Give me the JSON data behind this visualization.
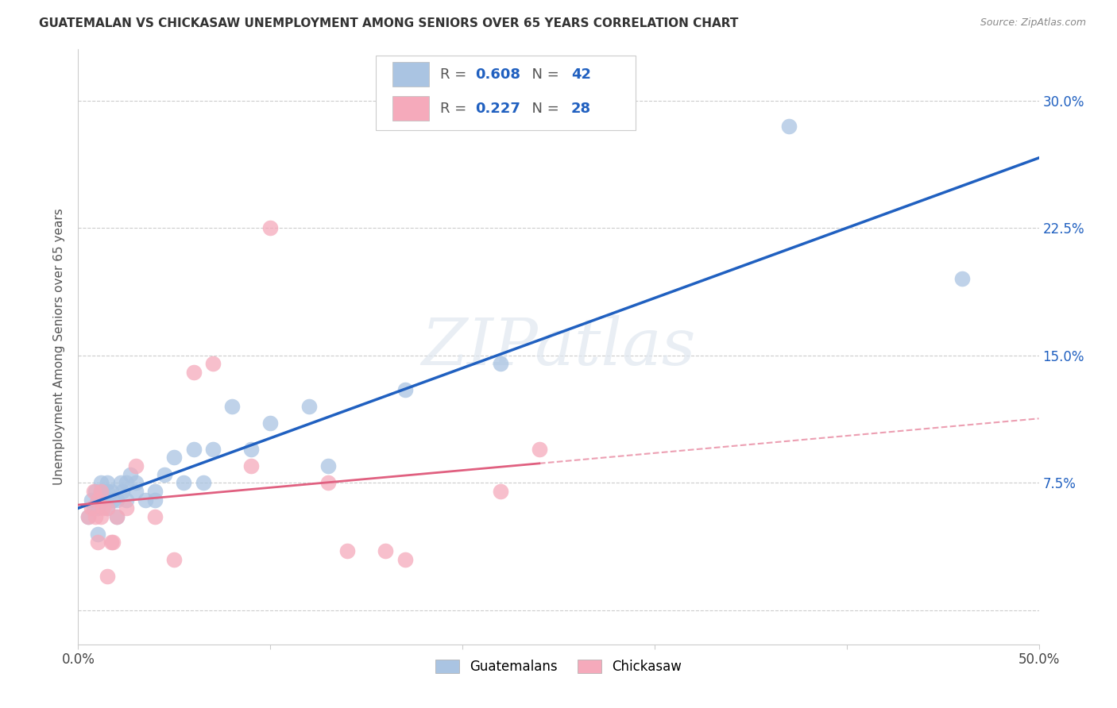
{
  "title": "GUATEMALAN VS CHICKASAW UNEMPLOYMENT AMONG SENIORS OVER 65 YEARS CORRELATION CHART",
  "source": "Source: ZipAtlas.com",
  "ylabel": "Unemployment Among Seniors over 65 years",
  "xlim": [
    0.0,
    0.5
  ],
  "ylim": [
    -0.02,
    0.33
  ],
  "x_ticks": [
    0.0,
    0.1,
    0.2,
    0.3,
    0.4,
    0.5
  ],
  "x_tick_labels": [
    "0.0%",
    "",
    "",
    "",
    "",
    "50.0%"
  ],
  "y_ticks": [
    0.0,
    0.075,
    0.15,
    0.225,
    0.3
  ],
  "y_tick_labels": [
    "",
    "7.5%",
    "15.0%",
    "22.5%",
    "30.0%"
  ],
  "background_color": "#ffffff",
  "grid_color": "#cccccc",
  "watermark_text": "ZIPatlas",
  "guatemalan_color": "#aac4e2",
  "chickasaw_color": "#f5aabb",
  "guatemalan_line_color": "#2060c0",
  "chickasaw_line_color": "#e06080",
  "guatemalan_x": [
    0.005,
    0.007,
    0.008,
    0.009,
    0.01,
    0.01,
    0.01,
    0.012,
    0.012,
    0.013,
    0.015,
    0.015,
    0.015,
    0.017,
    0.018,
    0.02,
    0.02,
    0.022,
    0.023,
    0.025,
    0.025,
    0.027,
    0.03,
    0.03,
    0.035,
    0.04,
    0.04,
    0.045,
    0.05,
    0.055,
    0.06,
    0.065,
    0.07,
    0.08,
    0.09,
    0.1,
    0.12,
    0.13,
    0.17,
    0.22,
    0.37,
    0.46
  ],
  "guatemalan_y": [
    0.055,
    0.065,
    0.06,
    0.07,
    0.06,
    0.065,
    0.045,
    0.07,
    0.075,
    0.065,
    0.06,
    0.07,
    0.075,
    0.07,
    0.065,
    0.055,
    0.065,
    0.075,
    0.07,
    0.065,
    0.075,
    0.08,
    0.07,
    0.075,
    0.065,
    0.07,
    0.065,
    0.08,
    0.09,
    0.075,
    0.095,
    0.075,
    0.095,
    0.12,
    0.095,
    0.11,
    0.12,
    0.085,
    0.13,
    0.145,
    0.285,
    0.195
  ],
  "chickasaw_x": [
    0.005,
    0.007,
    0.008,
    0.009,
    0.01,
    0.01,
    0.012,
    0.012,
    0.013,
    0.015,
    0.015,
    0.017,
    0.018,
    0.02,
    0.025,
    0.03,
    0.04,
    0.05,
    0.06,
    0.07,
    0.09,
    0.1,
    0.13,
    0.14,
    0.16,
    0.17,
    0.22,
    0.24
  ],
  "chickasaw_y": [
    0.055,
    0.06,
    0.07,
    0.055,
    0.065,
    0.04,
    0.055,
    0.07,
    0.06,
    0.06,
    0.02,
    0.04,
    0.04,
    0.055,
    0.06,
    0.085,
    0.055,
    0.03,
    0.14,
    0.145,
    0.085,
    0.225,
    0.075,
    0.035,
    0.035,
    0.03,
    0.07,
    0.095
  ]
}
